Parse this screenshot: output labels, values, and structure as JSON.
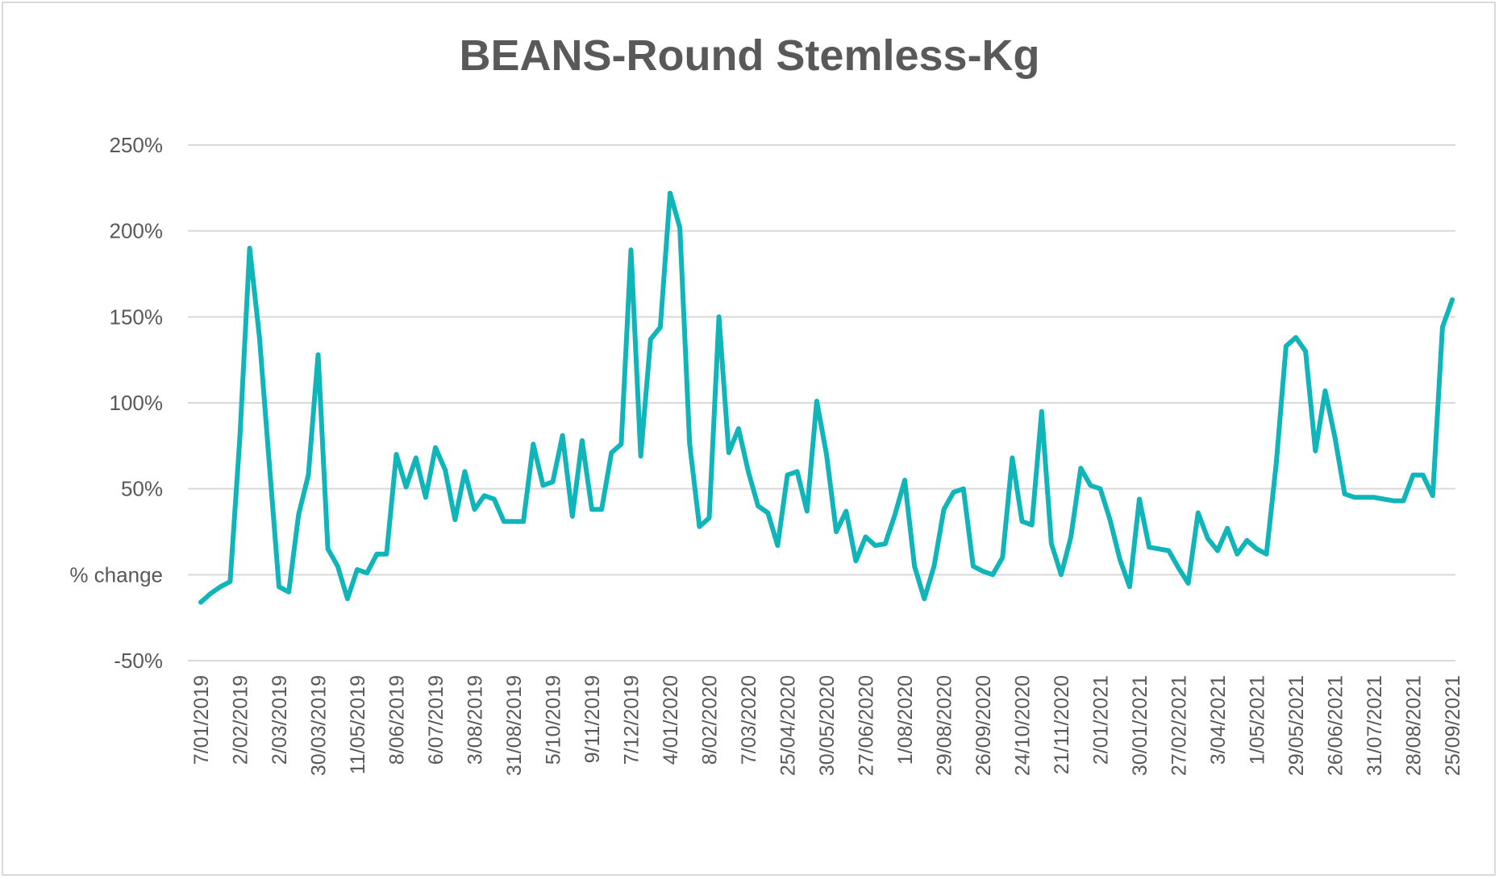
{
  "chart_data": {
    "type": "line",
    "title": "BEANS-Round Stemless-Kg",
    "xlabel": "",
    "ylabel": "",
    "ylim": [
      -0.5,
      2.5
    ],
    "y_ticks": [
      "250%",
      "200%",
      "150%",
      "100%",
      "50%",
      "% change",
      "-50%"
    ],
    "y_tick_values": [
      2.5,
      2.0,
      1.5,
      1.0,
      0.5,
      0.0,
      -0.5
    ],
    "x_tick_labels": [
      "7/01/2019",
      "2/02/2019",
      "2/03/2019",
      "30/03/2019",
      "11/05/2019",
      "8/06/2019",
      "6/07/2019",
      "3/08/2019",
      "31/08/2019",
      "5/10/2019",
      "9/11/2019",
      "7/12/2019",
      "4/01/2020",
      "8/02/2020",
      "7/03/2020",
      "25/04/2020",
      "30/05/2020",
      "27/06/2020",
      "1/08/2020",
      "29/08/2020",
      "26/09/2020",
      "24/10/2020",
      "21/11/2020",
      "2/01/2021",
      "30/01/2021",
      "27/02/2021",
      "3/04/2021",
      "1/05/2021",
      "29/05/2021",
      "26/06/2021",
      "31/07/2021",
      "28/08/2021",
      "25/09/2021"
    ],
    "grid": true,
    "legend": "none",
    "line_color": "#0fb5b8",
    "series": [
      {
        "values": [
          -0.16,
          -0.11,
          -0.07,
          -0.04,
          0.8,
          1.9,
          1.38,
          0.65,
          -0.07,
          -0.1,
          0.35,
          0.58,
          1.28,
          0.15,
          0.05,
          -0.14,
          0.03,
          0.01,
          0.12,
          0.12,
          0.7,
          0.51,
          0.68,
          0.45,
          0.74,
          0.61,
          0.32,
          0.6,
          0.38,
          0.46,
          0.44,
          0.31,
          0.31,
          0.31,
          0.76,
          0.52,
          0.54,
          0.81,
          0.34,
          0.78,
          0.38,
          0.38,
          0.71,
          0.76,
          1.89,
          0.69,
          1.37,
          1.44,
          2.22,
          2.02,
          0.76,
          0.28,
          0.33,
          1.5,
          0.71,
          0.85,
          0.6,
          0.4,
          0.36,
          0.17,
          0.58,
          0.6,
          0.37,
          1.01,
          0.7,
          0.25,
          0.37,
          0.08,
          0.22,
          0.17,
          0.18,
          0.35,
          0.55,
          0.05,
          -0.14,
          0.05,
          0.38,
          0.48,
          0.5,
          0.05,
          0.02,
          0.0,
          0.1,
          0.68,
          0.31,
          0.29,
          0.95,
          0.18,
          0.0,
          0.22,
          0.62,
          0.52,
          0.5,
          0.32,
          0.09,
          -0.07,
          0.44,
          0.16,
          0.15,
          0.14,
          0.04,
          -0.05,
          0.36,
          0.21,
          0.14,
          0.27,
          0.12,
          0.2,
          0.15,
          0.12,
          0.65,
          1.33,
          1.38,
          1.3,
          0.72,
          1.07,
          0.8,
          0.47,
          0.45,
          0.45,
          0.45,
          0.44,
          0.43,
          0.43,
          0.58,
          0.58,
          0.46,
          1.44,
          1.6
        ]
      }
    ]
  }
}
